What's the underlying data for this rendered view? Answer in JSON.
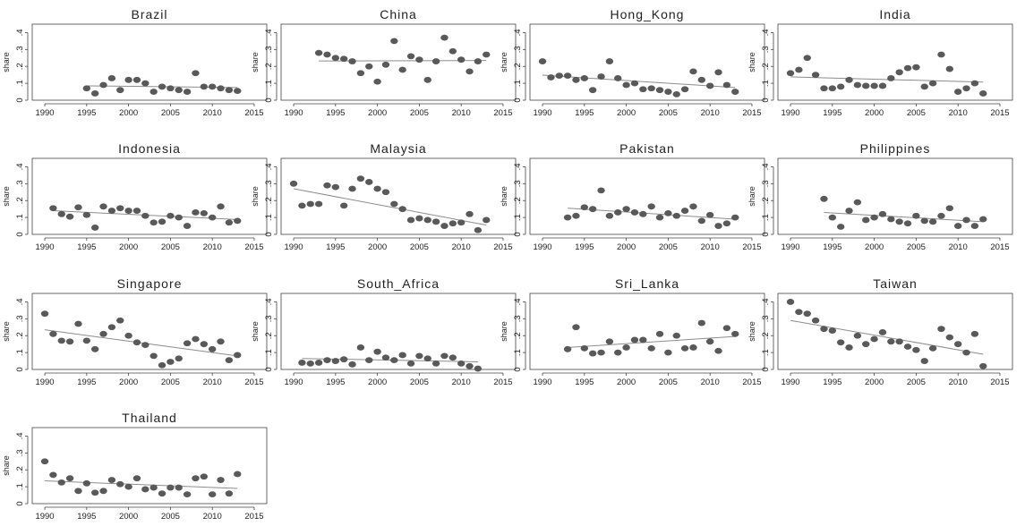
{
  "chart_data": [
    {
      "type": "scatter",
      "title": "Brazil",
      "ylabel": "share",
      "xlim": [
        1988.5,
        2016.5
      ],
      "ylim": [
        0,
        0.45
      ],
      "x_ticks": [
        "1990",
        "1995",
        "2000",
        "2005",
        "2010",
        "2015"
      ],
      "y_ticks": [
        "0",
        ".1",
        ".2",
        ".3",
        ".4"
      ],
      "x": [
        1995,
        1996,
        1997,
        1998,
        1999,
        2000,
        2001,
        2002,
        2003,
        2004,
        2005,
        2006,
        2007,
        2008,
        2009,
        2010,
        2011,
        2012,
        2013
      ],
      "y": [
        0.07,
        0.04,
        0.09,
        0.13,
        0.06,
        0.12,
        0.12,
        0.1,
        0.05,
        0.08,
        0.07,
        0.06,
        0.05,
        0.16,
        0.08,
        0.08,
        0.07,
        0.06,
        0.055
      ],
      "fit": {
        "x": [
          1995,
          2013
        ],
        "y": [
          0.085,
          0.075
        ]
      }
    },
    {
      "type": "scatter",
      "title": "China",
      "ylabel": "share",
      "xlim": [
        1988.5,
        2016.5
      ],
      "ylim": [
        0,
        0.45
      ],
      "x_ticks": [
        "1990",
        "1995",
        "2000",
        "2005",
        "2010",
        "2015"
      ],
      "y_ticks": [
        "0",
        ".1",
        ".2",
        ".3",
        ".4"
      ],
      "x": [
        1993,
        1994,
        1995,
        1996,
        1997,
        1998,
        1999,
        2000,
        2001,
        2002,
        2003,
        2004,
        2005,
        2006,
        2007,
        2008,
        2009,
        2010,
        2011,
        2012,
        2013
      ],
      "y": [
        0.28,
        0.27,
        0.25,
        0.245,
        0.23,
        0.16,
        0.2,
        0.11,
        0.21,
        0.35,
        0.18,
        0.26,
        0.24,
        0.12,
        0.23,
        0.37,
        0.29,
        0.24,
        0.17,
        0.23,
        0.27
      ],
      "fit": {
        "x": [
          1993,
          2013
        ],
        "y": [
          0.232,
          0.235
        ]
      }
    },
    {
      "type": "scatter",
      "title": "Hong_Kong",
      "ylabel": "share",
      "xlim": [
        1988.5,
        2016.5
      ],
      "ylim": [
        0,
        0.45
      ],
      "x_ticks": [
        "1990",
        "1995",
        "2000",
        "2005",
        "2010",
        "2015"
      ],
      "y_ticks": [
        "0",
        ".1",
        ".2",
        ".3",
        ".4"
      ],
      "x": [
        1990,
        1991,
        1992,
        1993,
        1994,
        1995,
        1996,
        1997,
        1998,
        1999,
        2000,
        2001,
        2002,
        2003,
        2004,
        2005,
        2006,
        2007,
        2008,
        2009,
        2010,
        2011,
        2012,
        2013
      ],
      "y": [
        0.23,
        0.135,
        0.145,
        0.145,
        0.12,
        0.13,
        0.06,
        0.14,
        0.23,
        0.13,
        0.09,
        0.1,
        0.065,
        0.07,
        0.06,
        0.05,
        0.035,
        0.065,
        0.17,
        0.12,
        0.085,
        0.165,
        0.09,
        0.05
      ],
      "fit": {
        "x": [
          1990,
          2013
        ],
        "y": [
          0.148,
          0.075
        ]
      }
    },
    {
      "type": "scatter",
      "title": "India",
      "ylabel": "share",
      "xlim": [
        1988.5,
        2016.5
      ],
      "ylim": [
        0,
        0.45
      ],
      "x_ticks": [
        "1990",
        "1995",
        "2000",
        "2005",
        "2010",
        "2015"
      ],
      "y_ticks": [
        "0",
        ".1",
        ".2",
        ".3",
        ".4"
      ],
      "x": [
        1990,
        1991,
        1992,
        1993,
        1994,
        1995,
        1996,
        1997,
        1998,
        1999,
        2000,
        2001,
        2002,
        2003,
        2004,
        2005,
        2006,
        2007,
        2008,
        2009,
        2010,
        2011,
        2012,
        2013
      ],
      "y": [
        0.16,
        0.18,
        0.25,
        0.15,
        0.07,
        0.07,
        0.08,
        0.12,
        0.09,
        0.085,
        0.085,
        0.085,
        0.13,
        0.165,
        0.19,
        0.195,
        0.08,
        0.1,
        0.27,
        0.185,
        0.05,
        0.07,
        0.1,
        0.04
      ],
      "fit": {
        "x": [
          1990,
          2013
        ],
        "y": [
          0.138,
          0.107
        ]
      }
    },
    {
      "type": "scatter",
      "title": "Indonesia",
      "ylabel": "share",
      "xlim": [
        1988.5,
        2016.5
      ],
      "ylim": [
        0,
        0.45
      ],
      "x_ticks": [
        "1990",
        "1995",
        "2000",
        "2005",
        "2010",
        "2015"
      ],
      "y_ticks": [
        "0",
        ".1",
        ".2",
        ".3",
        ".4"
      ],
      "x": [
        1991,
        1992,
        1993,
        1994,
        1995,
        1996,
        1997,
        1998,
        1999,
        2000,
        2001,
        2002,
        2003,
        2004,
        2005,
        2006,
        2007,
        2008,
        2009,
        2010,
        2011,
        2012,
        2013
      ],
      "y": [
        0.155,
        0.12,
        0.105,
        0.16,
        0.115,
        0.04,
        0.165,
        0.14,
        0.155,
        0.14,
        0.14,
        0.11,
        0.07,
        0.075,
        0.11,
        0.1,
        0.05,
        0.13,
        0.125,
        0.1,
        0.165,
        0.07,
        0.08
      ],
      "fit": {
        "x": [
          1991,
          2013
        ],
        "y": [
          0.14,
          0.088
        ]
      }
    },
    {
      "type": "scatter",
      "title": "Malaysia",
      "ylabel": "share",
      "xlim": [
        1988.5,
        2016.5
      ],
      "ylim": [
        0,
        0.45
      ],
      "x_ticks": [
        "1990",
        "1995",
        "2000",
        "2005",
        "2010",
        "2015"
      ],
      "y_ticks": [
        "0",
        ".1",
        ".2",
        ".3",
        ".4"
      ],
      "x": [
        1990,
        1991,
        1992,
        1993,
        1994,
        1995,
        1996,
        1997,
        1998,
        1999,
        2000,
        2001,
        2002,
        2003,
        2004,
        2005,
        2006,
        2007,
        2008,
        2009,
        2010,
        2011,
        2012,
        2013
      ],
      "y": [
        0.3,
        0.17,
        0.18,
        0.18,
        0.29,
        0.28,
        0.17,
        0.27,
        0.33,
        0.31,
        0.27,
        0.25,
        0.18,
        0.15,
        0.085,
        0.095,
        0.085,
        0.075,
        0.05,
        0.065,
        0.07,
        0.12,
        0.025,
        0.085
      ],
      "fit": {
        "x": [
          1990,
          2013
        ],
        "y": [
          0.27,
          0.055
        ]
      }
    },
    {
      "type": "scatter",
      "title": "Pakistan",
      "ylabel": "share",
      "xlim": [
        1988.5,
        2016.5
      ],
      "ylim": [
        0,
        0.45
      ],
      "x_ticks": [
        "1990",
        "1995",
        "2000",
        "2005",
        "2010",
        "2015"
      ],
      "y_ticks": [
        "0",
        ".1",
        ".2",
        ".3",
        ".4"
      ],
      "x": [
        1993,
        1994,
        1995,
        1996,
        1997,
        1998,
        1999,
        2000,
        2001,
        2002,
        2003,
        2004,
        2005,
        2006,
        2007,
        2008,
        2009,
        2010,
        2011,
        2012,
        2013
      ],
      "y": [
        0.1,
        0.11,
        0.16,
        0.15,
        0.26,
        0.11,
        0.13,
        0.15,
        0.13,
        0.12,
        0.165,
        0.1,
        0.125,
        0.11,
        0.14,
        0.165,
        0.08,
        0.115,
        0.05,
        0.065,
        0.1
      ],
      "fit": {
        "x": [
          1993,
          2013
        ],
        "y": [
          0.155,
          0.09
        ]
      }
    },
    {
      "type": "scatter",
      "title": "Philippines",
      "ylabel": "share",
      "xlim": [
        1988.5,
        2016.5
      ],
      "ylim": [
        0,
        0.45
      ],
      "x_ticks": [
        "1990",
        "1995",
        "2000",
        "2005",
        "2010",
        "2015"
      ],
      "y_ticks": [
        "0",
        ".1",
        ".2",
        ".3",
        ".4"
      ],
      "x": [
        1994,
        1995,
        1996,
        1997,
        1998,
        1999,
        2000,
        2001,
        2002,
        2003,
        2004,
        2005,
        2006,
        2007,
        2008,
        2009,
        2010,
        2011,
        2012,
        2013
      ],
      "y": [
        0.21,
        0.1,
        0.045,
        0.14,
        0.19,
        0.085,
        0.1,
        0.12,
        0.09,
        0.075,
        0.065,
        0.11,
        0.08,
        0.075,
        0.11,
        0.155,
        0.05,
        0.085,
        0.05,
        0.09
      ],
      "fit": {
        "x": [
          1994,
          2013
        ],
        "y": [
          0.13,
          0.075
        ]
      }
    },
    {
      "type": "scatter",
      "title": "Singapore",
      "ylabel": "share",
      "xlim": [
        1988.5,
        2016.5
      ],
      "ylim": [
        0,
        0.45
      ],
      "x_ticks": [
        "1990",
        "1995",
        "2000",
        "2005",
        "2010",
        "2015"
      ],
      "y_ticks": [
        "0",
        ".1",
        ".2",
        ".3",
        ".4"
      ],
      "x": [
        1990,
        1991,
        1992,
        1993,
        1994,
        1995,
        1996,
        1997,
        1998,
        1999,
        2000,
        2001,
        2002,
        2003,
        2004,
        2005,
        2006,
        2007,
        2008,
        2009,
        2010,
        2011,
        2012,
        2013
      ],
      "y": [
        0.33,
        0.21,
        0.17,
        0.165,
        0.27,
        0.17,
        0.12,
        0.21,
        0.25,
        0.29,
        0.2,
        0.16,
        0.145,
        0.08,
        0.025,
        0.045,
        0.065,
        0.155,
        0.18,
        0.15,
        0.12,
        0.165,
        0.055,
        0.085
      ],
      "fit": {
        "x": [
          1990,
          2013
        ],
        "y": [
          0.235,
          0.08
        ]
      }
    },
    {
      "type": "scatter",
      "title": "South_Africa",
      "ylabel": "share",
      "xlim": [
        1988.5,
        2016.5
      ],
      "ylim": [
        0,
        0.45
      ],
      "x_ticks": [
        "1990",
        "1995",
        "2000",
        "2005",
        "2010",
        "2015"
      ],
      "y_ticks": [
        "0",
        ".1",
        ".2",
        ".3",
        ".4"
      ],
      "x": [
        1991,
        1992,
        1993,
        1994,
        1995,
        1996,
        1997,
        1998,
        1999,
        2000,
        2001,
        2002,
        2003,
        2004,
        2005,
        2006,
        2007,
        2008,
        2009,
        2010,
        2011,
        2012
      ],
      "y": [
        0.04,
        0.035,
        0.04,
        0.055,
        0.05,
        0.06,
        0.03,
        0.13,
        0.055,
        0.105,
        0.07,
        0.055,
        0.085,
        0.035,
        0.08,
        0.065,
        0.035,
        0.08,
        0.07,
        0.035,
        0.02,
        0.005
      ],
      "fit": {
        "x": [
          1991,
          2012
        ],
        "y": [
          0.065,
          0.045
        ]
      }
    },
    {
      "type": "scatter",
      "title": "Sri_Lanka",
      "ylabel": "share",
      "xlim": [
        1988.5,
        2016.5
      ],
      "ylim": [
        0,
        0.45
      ],
      "x_ticks": [
        "1990",
        "1995",
        "2000",
        "2005",
        "2010",
        "2015"
      ],
      "y_ticks": [
        "0",
        ".1",
        ".2",
        ".3",
        ".4"
      ],
      "x": [
        1993,
        1994,
        1995,
        1996,
        1997,
        1998,
        1999,
        2000,
        2001,
        2002,
        2003,
        2004,
        2005,
        2006,
        2007,
        2008,
        2009,
        2010,
        2011,
        2012,
        2013
      ],
      "y": [
        0.12,
        0.25,
        0.125,
        0.095,
        0.1,
        0.165,
        0.1,
        0.13,
        0.175,
        0.175,
        0.125,
        0.21,
        0.1,
        0.2,
        0.125,
        0.13,
        0.275,
        0.165,
        0.11,
        0.245,
        0.21
      ],
      "fit": {
        "x": [
          1993,
          2013
        ],
        "y": [
          0.13,
          0.195
        ]
      }
    },
    {
      "type": "scatter",
      "title": "Taiwan",
      "ylabel": "share",
      "xlim": [
        1988.5,
        2016.5
      ],
      "ylim": [
        0,
        0.45
      ],
      "x_ticks": [
        "1990",
        "1995",
        "2000",
        "2005",
        "2010",
        "2015"
      ],
      "y_ticks": [
        "0",
        ".1",
        ".2",
        ".3",
        ".4"
      ],
      "x": [
        1990,
        1991,
        1992,
        1993,
        1994,
        1995,
        1996,
        1997,
        1998,
        1999,
        2000,
        2001,
        2002,
        2003,
        2004,
        2005,
        2006,
        2007,
        2008,
        2009,
        2010,
        2011,
        2012,
        2013
      ],
      "y": [
        0.4,
        0.34,
        0.33,
        0.29,
        0.24,
        0.23,
        0.16,
        0.13,
        0.2,
        0.15,
        0.18,
        0.22,
        0.165,
        0.165,
        0.135,
        0.115,
        0.05,
        0.125,
        0.24,
        0.19,
        0.15,
        0.1,
        0.21,
        0.02
      ],
      "fit": {
        "x": [
          1990,
          2013
        ],
        "y": [
          0.29,
          0.09
        ]
      }
    },
    {
      "type": "scatter",
      "title": "Thailand",
      "ylabel": "share",
      "xlim": [
        1988.5,
        2016.5
      ],
      "ylim": [
        0,
        0.45
      ],
      "x_ticks": [
        "1990",
        "1995",
        "2000",
        "2005",
        "2010",
        "2015"
      ],
      "y_ticks": [
        "0",
        ".1",
        ".2",
        ".3",
        ".4"
      ],
      "x": [
        1990,
        1991,
        1992,
        1993,
        1994,
        1995,
        1996,
        1997,
        1998,
        1999,
        2000,
        2001,
        2002,
        2003,
        2004,
        2005,
        2006,
        2007,
        2008,
        2009,
        2010,
        2011,
        2012,
        2013
      ],
      "y": [
        0.25,
        0.17,
        0.125,
        0.15,
        0.075,
        0.12,
        0.065,
        0.075,
        0.14,
        0.115,
        0.1,
        0.15,
        0.085,
        0.095,
        0.06,
        0.095,
        0.095,
        0.055,
        0.15,
        0.16,
        0.055,
        0.14,
        0.06,
        0.175
      ],
      "fit": {
        "x": [
          1990,
          2013
        ],
        "y": [
          0.135,
          0.09
        ]
      }
    }
  ]
}
